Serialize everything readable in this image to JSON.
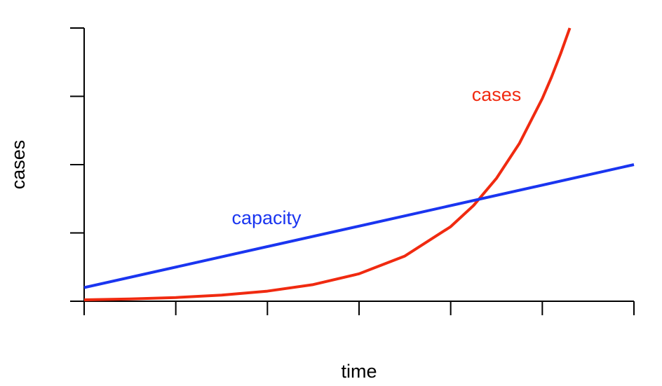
{
  "chart_data": {
    "type": "line",
    "x_label": "time",
    "y_label": "cases",
    "annotations": [
      "cases",
      "capacity"
    ],
    "series": [
      {
        "name": "cases",
        "color": "#f02a10",
        "x": [
          0,
          0.5,
          1,
          1.5,
          2,
          2.5,
          3,
          3.5,
          4,
          4.25,
          4.5,
          4.75,
          5,
          5.1,
          5.2,
          5.3
        ],
        "values": [
          0.02,
          0.033,
          0.054,
          0.09,
          0.148,
          0.244,
          0.402,
          0.662,
          1.092,
          1.402,
          1.8,
          2.311,
          2.968,
          3.28,
          3.625,
          4.0
        ]
      },
      {
        "name": "capacity",
        "color": "#1a35f0",
        "x": [
          0,
          6
        ],
        "values": [
          0.2,
          2.0
        ]
      }
    ],
    "xlim": [
      0,
      6
    ],
    "ylim": [
      0,
      4
    ],
    "xticks": [
      0,
      1,
      2,
      3,
      4,
      5,
      6
    ],
    "yticks": [
      0,
      1,
      2,
      3,
      4
    ]
  }
}
